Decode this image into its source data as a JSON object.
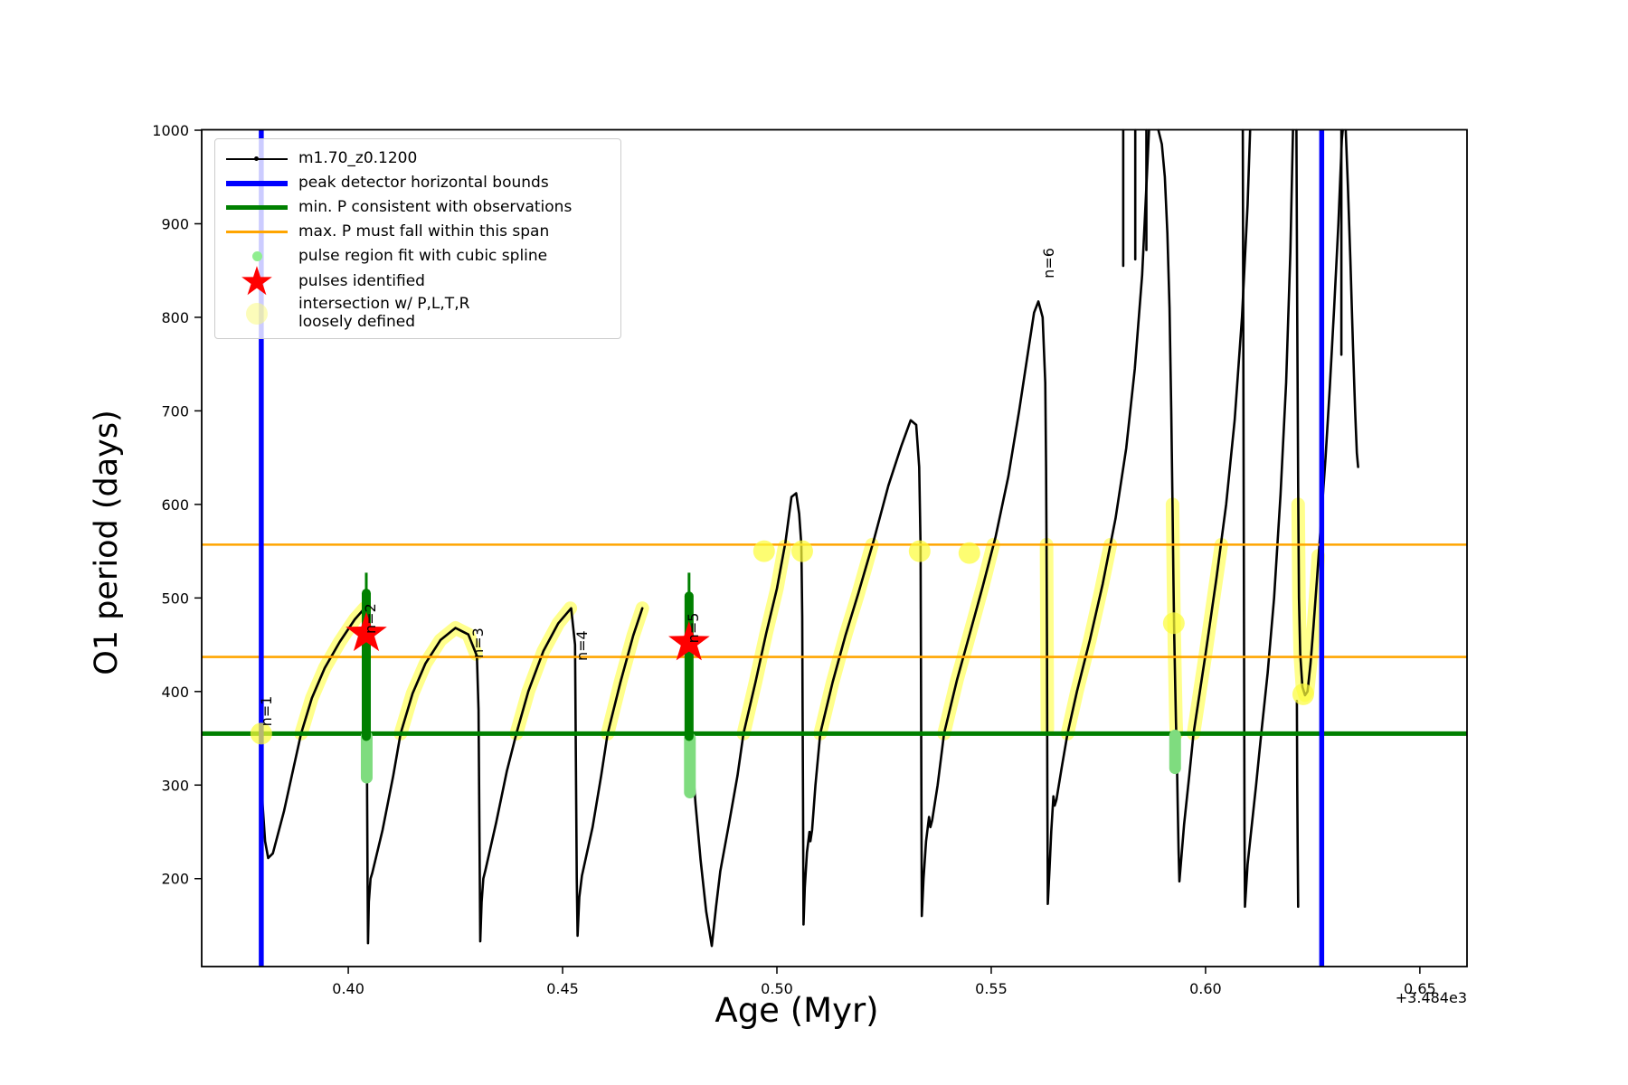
{
  "figure": {
    "xlabel": "Age (Myr)",
    "ylabel": "O1 period (days)",
    "offset_text": "+3.484e3"
  },
  "legend": {
    "items": [
      {
        "label": "m1.70_z0.1200",
        "marker": "black-line-dot"
      },
      {
        "label": "peak detector horizontal bounds",
        "marker": "blue-thick-line"
      },
      {
        "label": "min. P consistent with observations",
        "marker": "green-thick-line"
      },
      {
        "label": "max. P must fall within this span",
        "marker": "orange-line"
      },
      {
        "label": "pulse region fit with cubic spline",
        "marker": "lightgreen-dot"
      },
      {
        "label": "pulses identified",
        "marker": "red-star"
      },
      {
        "label": "intersection w/ P,L,T,R",
        "label2": "loosely defined",
        "marker": "paleyellow-dot"
      }
    ]
  },
  "chart_data": {
    "type": "scatter",
    "title": "",
    "xlabel": "Age (Myr)",
    "ylabel": "O1 period (days)",
    "x_axis_offset": "+3.484e3",
    "xlim": [
      0.3658,
      0.661
    ],
    "ylim": [
      106,
      1000.5
    ],
    "xticks": [
      0.4,
      0.45,
      0.5,
      0.55,
      0.6,
      0.65
    ],
    "xtick_labels": [
      "0.40",
      "0.45",
      "0.50",
      "0.55",
      "0.60",
      "0.65"
    ],
    "yticks": [
      200,
      300,
      400,
      500,
      600,
      700,
      800,
      900,
      1000
    ],
    "colors": {
      "series": "#000000",
      "peak_bounds": "#0000ff",
      "min_P": "#008000",
      "max_P_span": "#ffa500",
      "spline_region": "#7fdc7f",
      "pulses": "#ff0000",
      "intersection": "rgba(255,255,0,0.45)"
    },
    "blue_vlines": [
      0.3797,
      0.6271
    ],
    "green_hline": 355,
    "orange_hlines": [
      557,
      437
    ],
    "series_name": "m1.70_z0.1200",
    "black_polylines": [
      [
        [
          0.3797,
          335
        ],
        [
          0.38,
          280
        ],
        [
          0.3806,
          240
        ],
        [
          0.3813,
          222
        ],
        [
          0.3824,
          227
        ],
        [
          0.385,
          272
        ],
        [
          0.3873,
          320
        ],
        [
          0.389,
          355
        ],
        [
          0.3915,
          393
        ],
        [
          0.3945,
          425
        ],
        [
          0.398,
          453
        ],
        [
          0.4015,
          477
        ],
        [
          0.404,
          490
        ],
        [
          0.4043,
          400
        ],
        [
          0.4044,
          290
        ],
        [
          0.4045,
          200
        ],
        [
          0.4046,
          131
        ],
        [
          0.4048,
          175
        ],
        [
          0.4052,
          200
        ],
        [
          0.4056,
          206
        ],
        [
          0.408,
          252
        ],
        [
          0.4105,
          310
        ],
        [
          0.4122,
          355
        ],
        [
          0.415,
          398
        ],
        [
          0.418,
          430
        ],
        [
          0.4215,
          455
        ],
        [
          0.425,
          468
        ],
        [
          0.428,
          461
        ],
        [
          0.43,
          438
        ],
        [
          0.4304,
          380
        ],
        [
          0.4306,
          250
        ],
        [
          0.4308,
          133
        ],
        [
          0.4311,
          175
        ],
        [
          0.4315,
          200
        ],
        [
          0.432,
          209
        ],
        [
          0.4345,
          260
        ],
        [
          0.437,
          315
        ],
        [
          0.4392,
          355
        ],
        [
          0.442,
          400
        ],
        [
          0.4455,
          443
        ],
        [
          0.449,
          473
        ],
        [
          0.452,
          489
        ],
        [
          0.4529,
          450
        ],
        [
          0.4531,
          330
        ],
        [
          0.4533,
          200
        ],
        [
          0.4535,
          139
        ],
        [
          0.4539,
          180
        ],
        [
          0.4545,
          203
        ],
        [
          0.457,
          255
        ],
        [
          0.459,
          310
        ],
        [
          0.4605,
          355
        ],
        [
          0.4635,
          410
        ],
        [
          0.4665,
          460
        ],
        [
          0.4686,
          489
        ]
      ],
      [
        [
          0.4795,
          450
        ],
        [
          0.4798,
          380
        ],
        [
          0.4802,
          330
        ],
        [
          0.481,
          280
        ],
        [
          0.4822,
          220
        ],
        [
          0.4835,
          165
        ],
        [
          0.4848,
          128
        ],
        [
          0.4858,
          170
        ],
        [
          0.4868,
          208
        ],
        [
          0.4888,
          258
        ],
        [
          0.4908,
          310
        ],
        [
          0.4922,
          355
        ],
        [
          0.495,
          410
        ],
        [
          0.4975,
          462
        ],
        [
          0.5,
          510
        ],
        [
          0.502,
          560
        ],
        [
          0.5034,
          608
        ],
        [
          0.5045,
          612
        ],
        [
          0.5052,
          590
        ],
        [
          0.5057,
          557
        ],
        [
          0.5059,
          480
        ],
        [
          0.506,
          380
        ],
        [
          0.5061,
          280
        ],
        [
          0.5062,
          151
        ],
        [
          0.5065,
          190
        ],
        [
          0.507,
          228
        ],
        [
          0.5076,
          250
        ],
        [
          0.5078,
          240
        ],
        [
          0.5082,
          252
        ],
        [
          0.509,
          300
        ],
        [
          0.5101,
          355
        ],
        [
          0.513,
          410
        ],
        [
          0.516,
          460
        ],
        [
          0.519,
          505
        ],
        [
          0.5225,
          560
        ],
        [
          0.526,
          620
        ],
        [
          0.529,
          662
        ],
        [
          0.5312,
          690
        ],
        [
          0.5325,
          685
        ],
        [
          0.5332,
          640
        ],
        [
          0.5335,
          557
        ],
        [
          0.5336,
          450
        ],
        [
          0.5337,
          300
        ],
        [
          0.5338,
          160
        ],
        [
          0.5342,
          200
        ],
        [
          0.5348,
          240
        ],
        [
          0.5355,
          266
        ],
        [
          0.5358,
          255
        ],
        [
          0.5362,
          262
        ],
        [
          0.5375,
          300
        ],
        [
          0.539,
          355
        ],
        [
          0.542,
          412
        ],
        [
          0.545,
          462
        ],
        [
          0.548,
          512
        ],
        [
          0.551,
          565
        ],
        [
          0.554,
          630
        ],
        [
          0.5565,
          700
        ],
        [
          0.5585,
          760
        ],
        [
          0.56,
          805
        ],
        [
          0.561,
          817
        ],
        [
          0.562,
          800
        ],
        [
          0.5626,
          730
        ],
        [
          0.5628,
          640
        ],
        [
          0.5629,
          557
        ],
        [
          0.563,
          450
        ],
        [
          0.5631,
          300
        ],
        [
          0.5632,
          173
        ],
        [
          0.5636,
          210
        ],
        [
          0.564,
          250
        ],
        [
          0.5645,
          288
        ],
        [
          0.5648,
          278
        ],
        [
          0.5652,
          284
        ],
        [
          0.5665,
          320
        ],
        [
          0.5678,
          355
        ],
        [
          0.57,
          400
        ],
        [
          0.573,
          455
        ],
        [
          0.576,
          515
        ],
        [
          0.579,
          585
        ],
        [
          0.5815,
          660
        ],
        [
          0.5835,
          745
        ],
        [
          0.5852,
          845
        ],
        [
          0.5863,
          950
        ],
        [
          0.5868,
          1000
        ]
      ],
      [
        [
          0.589,
          1000
        ],
        [
          0.5898,
          985
        ],
        [
          0.5905,
          950
        ],
        [
          0.5911,
          890
        ],
        [
          0.5916,
          810
        ],
        [
          0.592,
          700
        ],
        [
          0.5923,
          600
        ],
        [
          0.5925,
          520
        ],
        [
          0.5927,
          460
        ],
        [
          0.5929,
          410
        ],
        [
          0.5931,
          368
        ],
        [
          0.5933,
          330
        ],
        [
          0.5935,
          280
        ],
        [
          0.5937,
          230
        ],
        [
          0.5939,
          197
        ],
        [
          0.5944,
          225
        ],
        [
          0.595,
          258
        ],
        [
          0.5962,
          310
        ],
        [
          0.5972,
          355
        ],
        [
          0.6,
          440
        ],
        [
          0.6025,
          520
        ],
        [
          0.6048,
          600
        ],
        [
          0.6068,
          690
        ],
        [
          0.6085,
          800
        ],
        [
          0.6098,
          920
        ],
        [
          0.6104,
          1000
        ]
      ],
      [
        [
          0.6087,
          1000
        ],
        [
          0.6088,
          800
        ],
        [
          0.6089,
          600
        ],
        [
          0.609,
          400
        ],
        [
          0.6091,
          250
        ],
        [
          0.6092,
          170
        ],
        [
          0.6098,
          215
        ],
        [
          0.6105,
          245
        ],
        [
          0.6118,
          300
        ],
        [
          0.613,
          355
        ],
        [
          0.6145,
          420
        ],
        [
          0.616,
          500
        ],
        [
          0.6175,
          610
        ],
        [
          0.6188,
          730
        ],
        [
          0.6198,
          870
        ],
        [
          0.6204,
          1000
        ]
      ],
      [
        [
          0.6212,
          1000
        ],
        [
          0.6214,
          800
        ],
        [
          0.6216,
          620
        ],
        [
          0.6218,
          500
        ],
        [
          0.6221,
          440
        ],
        [
          0.6226,
          405
        ],
        [
          0.6232,
          396
        ],
        [
          0.6238,
          400
        ],
        [
          0.6245,
          430
        ],
        [
          0.6252,
          470
        ],
        [
          0.626,
          520
        ],
        [
          0.627,
          585
        ],
        [
          0.628,
          650
        ],
        [
          0.629,
          725
        ],
        [
          0.63,
          810
        ],
        [
          0.631,
          900
        ],
        [
          0.6318,
          990
        ],
        [
          0.632,
          1000
        ]
      ],
      [
        [
          0.6213,
          390
        ],
        [
          0.6214,
          300
        ],
        [
          0.6215,
          230
        ],
        [
          0.6216,
          170
        ]
      ],
      [
        [
          0.6327,
          1000
        ],
        [
          0.6332,
          940
        ],
        [
          0.6338,
          860
        ],
        [
          0.6344,
          770
        ],
        [
          0.6349,
          700
        ],
        [
          0.6353,
          655
        ],
        [
          0.6356,
          640
        ]
      ],
      [
        [
          0.6317,
          1000
        ],
        [
          0.6317,
          760
        ]
      ],
      [
        [
          0.5808,
          1000
        ],
        [
          0.5808,
          855
        ]
      ],
      [
        [
          0.5836,
          1000
        ],
        [
          0.5836,
          862
        ]
      ],
      [
        [
          0.5862,
          1000
        ],
        [
          0.5862,
          872
        ]
      ]
    ],
    "yellow_bands": [
      [
        [
          0.389,
          355
        ],
        [
          0.3915,
          393
        ],
        [
          0.3945,
          425
        ],
        [
          0.398,
          453
        ],
        [
          0.4015,
          477
        ],
        [
          0.4038,
          489
        ]
      ],
      [
        [
          0.4122,
          355
        ],
        [
          0.415,
          398
        ],
        [
          0.418,
          430
        ],
        [
          0.4215,
          455
        ],
        [
          0.425,
          468
        ],
        [
          0.428,
          461
        ],
        [
          0.4298,
          440
        ]
      ],
      [
        [
          0.4392,
          355
        ],
        [
          0.442,
          400
        ],
        [
          0.4455,
          443
        ],
        [
          0.449,
          473
        ],
        [
          0.4518,
          489
        ]
      ],
      [
        [
          0.4605,
          355
        ],
        [
          0.4635,
          410
        ],
        [
          0.4665,
          460
        ],
        [
          0.4686,
          489
        ]
      ],
      [
        [
          0.4922,
          355
        ],
        [
          0.495,
          410
        ],
        [
          0.4975,
          462
        ],
        [
          0.5,
          510
        ],
        [
          0.5018,
          555
        ]
      ],
      [
        [
          0.5101,
          355
        ],
        [
          0.513,
          410
        ],
        [
          0.516,
          460
        ],
        [
          0.519,
          505
        ],
        [
          0.5222,
          557
        ]
      ],
      [
        [
          0.539,
          355
        ],
        [
          0.542,
          412
        ],
        [
          0.545,
          462
        ],
        [
          0.548,
          512
        ],
        [
          0.5505,
          557
        ]
      ],
      [
        [
          0.5629,
          557
        ],
        [
          0.563,
          450
        ],
        [
          0.5631,
          360
        ]
      ],
      [
        [
          0.5678,
          355
        ],
        [
          0.57,
          400
        ],
        [
          0.573,
          455
        ],
        [
          0.5757,
          510
        ],
        [
          0.5778,
          557
        ]
      ],
      [
        [
          0.5923,
          600
        ],
        [
          0.5925,
          520
        ],
        [
          0.5927,
          460
        ],
        [
          0.5929,
          410
        ],
        [
          0.5931,
          368
        ],
        [
          0.5932,
          355
        ]
      ],
      [
        [
          0.5972,
          355
        ],
        [
          0.6,
          440
        ],
        [
          0.6025,
          520
        ],
        [
          0.6037,
          557
        ]
      ],
      [
        [
          0.6216,
          600
        ],
        [
          0.6218,
          500
        ],
        [
          0.6221,
          440
        ],
        [
          0.6226,
          405
        ],
        [
          0.6232,
          396
        ],
        [
          0.6238,
          400
        ],
        [
          0.6245,
          430
        ],
        [
          0.6252,
          470
        ],
        [
          0.6258,
          510
        ],
        [
          0.6263,
          545
        ]
      ]
    ],
    "yellow_dots": [
      [
        0.3797,
        355
      ],
      [
        0.497,
        550
      ],
      [
        0.5059,
        550
      ],
      [
        0.5333,
        550
      ],
      [
        0.5449,
        548
      ],
      [
        0.5926,
        473
      ],
      [
        0.6228,
        397
      ]
    ],
    "palegreen_columns": [
      {
        "age": 0.4043,
        "p_top": 352,
        "p_bottom": 308
      },
      {
        "age": 0.4797,
        "p_top": 350,
        "p_bottom": 292
      },
      {
        "age": 0.5929,
        "p_top": 353,
        "p_bottom": 318
      }
    ],
    "green_spikes": [
      {
        "age": 0.4042,
        "thin_top": 527,
        "thick_top": 505,
        "bottom": 352
      },
      {
        "age": 0.4795,
        "thin_top": 527,
        "thick_top": 502,
        "bottom": 352
      }
    ],
    "pulses_identified": [
      {
        "age": 0.4042,
        "period": 462
      },
      {
        "age": 0.4795,
        "period": 452
      }
    ],
    "pulse_labels": [
      {
        "text": "n=1",
        "age": 0.3821,
        "period": 379
      },
      {
        "text": "n=2",
        "age": 0.4063,
        "period": 478
      },
      {
        "text": "n=3",
        "age": 0.4314,
        "period": 452
      },
      {
        "text": "n=4",
        "age": 0.4557,
        "period": 449
      },
      {
        "text": "n=5",
        "age": 0.4816,
        "period": 468
      },
      {
        "text": "n=6",
        "age": 0.5646,
        "period": 858
      }
    ]
  }
}
